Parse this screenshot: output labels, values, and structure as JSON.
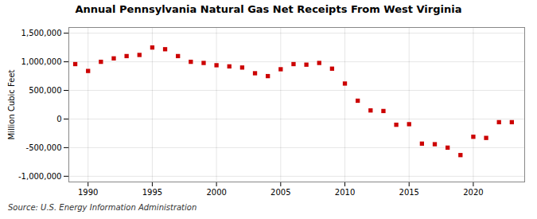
{
  "chart_data": {
    "type": "scatter",
    "title": "Annual Pennsylvania Natural Gas Net Receipts From West Virginia",
    "ylabel": "Million Cubic Feet",
    "caption": "Source: U.S. Energy Information Administration",
    "x": [
      1989,
      1990,
      1991,
      1992,
      1993,
      1994,
      1995,
      1996,
      1997,
      1998,
      1999,
      2000,
      2001,
      2002,
      2003,
      2004,
      2005,
      2006,
      2007,
      2008,
      2009,
      2010,
      2011,
      2012,
      2013,
      2014,
      2015,
      2016,
      2017,
      2018,
      2019,
      2020,
      2021,
      2022,
      2023
    ],
    "values": [
      960000,
      840000,
      1000000,
      1060000,
      1100000,
      1120000,
      1250000,
      1220000,
      1100000,
      1000000,
      980000,
      940000,
      920000,
      900000,
      800000,
      750000,
      870000,
      960000,
      950000,
      980000,
      880000,
      620000,
      320000,
      150000,
      140000,
      -100000,
      -90000,
      -430000,
      -440000,
      -500000,
      -630000,
      -310000,
      -330000,
      -55000,
      -55000
    ],
    "color": "#cc0000",
    "marker": "square",
    "xlim": [
      1988.5,
      2024
    ],
    "xticks": [
      1990,
      1995,
      2000,
      2005,
      2010,
      2015,
      2020
    ],
    "ylim": [
      -1100000,
      1600000
    ],
    "yticks": [
      {
        "value": -1000000,
        "label": "-1,000,000"
      },
      {
        "value": -500000,
        "label": "-500,000"
      },
      0,
      {
        "value": 500000,
        "label": "500,000"
      },
      {
        "value": 1000000,
        "label": "1,000,000"
      },
      {
        "value": 1500000,
        "label": "1,500,000"
      }
    ],
    "grid": true
  }
}
